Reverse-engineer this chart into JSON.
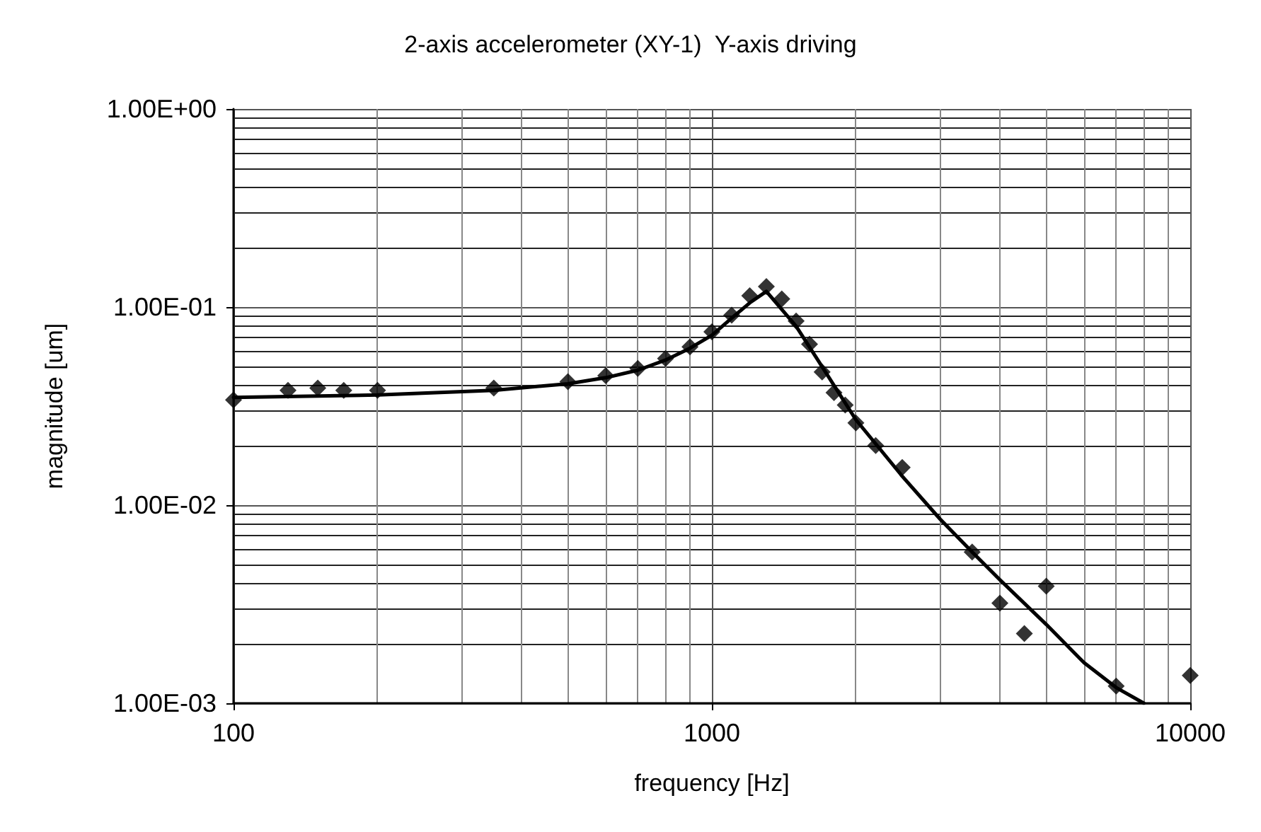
{
  "chart_data": {
    "type": "scatter",
    "title": "2-axis accelerometer (XY-1)  Y-axis driving",
    "xlabel": "frequency [Hz]",
    "ylabel": "magnitude [um]",
    "log": "xy",
    "grid": true,
    "xlim": [
      100,
      10000
    ],
    "xticks": [
      100,
      1000,
      10000
    ],
    "ylim": [
      0.001,
      1
    ],
    "yticks": [
      {
        "value": 1,
        "label": "1.00E+00"
      },
      {
        "value": 0.1,
        "label": "1.00E-01"
      },
      {
        "value": 0.01,
        "label": "1.00E-02"
      },
      {
        "value": 0.001,
        "label": "1.00E-03"
      }
    ],
    "series": [
      {
        "type": "scatter",
        "marker": "diamond",
        "color": "#000000",
        "x": [
          100,
          130,
          150,
          170,
          200,
          350,
          500,
          600,
          700,
          800,
          900,
          1000,
          1100,
          1200,
          1300,
          1400,
          1500,
          1600,
          1700,
          1800,
          1900,
          2000,
          2200,
          2500,
          3500,
          4000,
          4500,
          5000,
          7000,
          10000
        ],
        "values": [
          0.034,
          0.038,
          0.039,
          0.038,
          0.038,
          0.039,
          0.042,
          0.045,
          0.049,
          0.055,
          0.063,
          0.075,
          0.091,
          0.114,
          0.127,
          0.11,
          0.085,
          0.065,
          0.047,
          0.037,
          0.032,
          0.026,
          0.02,
          0.0155,
          0.0058,
          0.0032,
          0.00225,
          0.0039,
          0.00122,
          0.00138
        ]
      },
      {
        "type": "line",
        "marker": "none",
        "line_style": "solid",
        "color": "#000000",
        "x": [
          100,
          200,
          350,
          500,
          600,
          700,
          800,
          900,
          1000,
          1100,
          1200,
          1300,
          1500,
          1700,
          2000,
          2500,
          3000,
          3500,
          4000,
          5000,
          6000,
          7000,
          8000
        ],
        "values": [
          0.035,
          0.036,
          0.038,
          0.041,
          0.044,
          0.048,
          0.054,
          0.062,
          0.072,
          0.088,
          0.105,
          0.12,
          0.08,
          0.05,
          0.027,
          0.014,
          0.0085,
          0.0058,
          0.0042,
          0.0025,
          0.0016,
          0.0012,
          0.001
        ]
      }
    ]
  }
}
